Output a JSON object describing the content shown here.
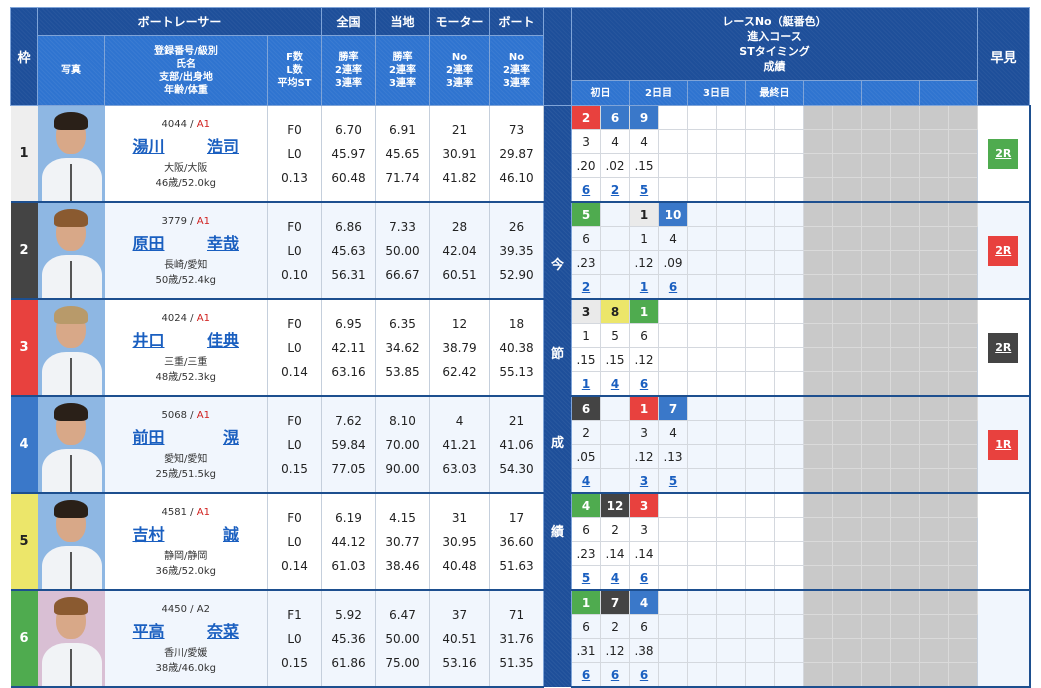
{
  "header": {
    "waku": "枠",
    "racer_group": "ボートレーサー",
    "photo": "写真",
    "profile_lines": [
      "登録番号/級別",
      "氏名",
      "支部/出身地",
      "年齢/体重"
    ],
    "fl_lines": [
      "F数",
      "L数",
      "平均ST"
    ],
    "national": {
      "title": "全国",
      "lines": [
        "勝率",
        "2連率",
        "3連率"
      ]
    },
    "local": {
      "title": "当地",
      "lines": [
        "勝率",
        "2連率",
        "3連率"
      ]
    },
    "motor": {
      "title": "モーター",
      "lines": [
        "No",
        "2連率",
        "3連率"
      ]
    },
    "boat": {
      "title": "ボート",
      "lines": [
        "No",
        "2連率",
        "3連率"
      ]
    },
    "series_vertical": [
      "今",
      "節",
      "成",
      "績"
    ],
    "race_block_lines": [
      "レースNo（艇番色）",
      "進入コース",
      "STタイミング",
      "成績"
    ],
    "days": [
      "初日",
      "2日目",
      "3日目",
      "最終日",
      "",
      "",
      ""
    ],
    "hayami": "早見"
  },
  "colors": {
    "header_dark": "#1e4f9a",
    "header_light": "#2f74d0",
    "link": "#1a5fc0",
    "class_a1": "#d0201e",
    "frame_1": "#eeeeee",
    "frame_2": "#444444",
    "frame_3": "#e8413e",
    "frame_4": "#3a78c9",
    "frame_5": "#ece66a",
    "frame_6": "#4fab4f"
  },
  "racers": [
    {
      "waku": "1",
      "reg": "4044",
      "cls": "A1",
      "last": "湯川",
      "first": "浩司",
      "loc": "大阪/大阪",
      "age_weight": "46歳/52.0kg",
      "f": "F0",
      "l": "L0",
      "st": "0.13",
      "nat": [
        "6.70",
        "45.97",
        "60.48"
      ],
      "loc_rate": [
        "6.91",
        "45.65",
        "71.74"
      ],
      "motor": [
        "21",
        "30.91",
        "41.82"
      ],
      "boat": [
        "73",
        "29.87",
        "46.10"
      ],
      "races": [
        {
          "race": "2",
          "color": "red",
          "course": "3",
          "st": ".20",
          "result": "6"
        },
        {
          "race": "6",
          "color": "blue",
          "course": "4",
          "st": ".02",
          "result": "2"
        },
        {
          "race": "9",
          "color": "blue",
          "course": "4",
          "st": ".15",
          "result": "5"
        },
        null
      ],
      "hayami": {
        "label": "2R",
        "color": "green"
      }
    },
    {
      "waku": "2",
      "reg": "3779",
      "cls": "A1",
      "last": "原田",
      "first": "幸哉",
      "loc": "長崎/愛知",
      "age_weight": "50歳/52.4kg",
      "f": "F0",
      "l": "L0",
      "st": "0.10",
      "nat": [
        "6.86",
        "45.63",
        "56.31"
      ],
      "loc_rate": [
        "7.33",
        "50.00",
        "66.67"
      ],
      "motor": [
        "28",
        "42.04",
        "60.51"
      ],
      "boat": [
        "26",
        "39.35",
        "52.90"
      ],
      "races": [
        {
          "race": "5",
          "color": "green",
          "course": "6",
          "st": ".23",
          "result": "2"
        },
        null,
        {
          "race": "1",
          "color": "white",
          "course": "1",
          "st": ".12",
          "result": "1"
        },
        {
          "race": "10",
          "color": "blue",
          "course": "4",
          "st": ".09",
          "result": "6"
        }
      ],
      "hayami": {
        "label": "2R",
        "color": "red"
      }
    },
    {
      "waku": "3",
      "reg": "4024",
      "cls": "A1",
      "last": "井口",
      "first": "佳典",
      "loc": "三重/三重",
      "age_weight": "48歳/52.3kg",
      "f": "F0",
      "l": "L0",
      "st": "0.14",
      "nat": [
        "6.95",
        "42.11",
        "63.16"
      ],
      "loc_rate": [
        "6.35",
        "34.62",
        "53.85"
      ],
      "motor": [
        "12",
        "38.79",
        "62.42"
      ],
      "boat": [
        "18",
        "40.38",
        "55.13"
      ],
      "races": [
        {
          "race": "3",
          "color": "white",
          "course": "1",
          "st": ".15",
          "result": "1"
        },
        {
          "race": "8",
          "color": "yellow",
          "course": "5",
          "st": ".15",
          "result": "4"
        },
        {
          "race": "1",
          "color": "green",
          "course": "6",
          "st": ".12",
          "result": "6"
        },
        null
      ],
      "hayami": {
        "label": "2R",
        "color": "black"
      }
    },
    {
      "waku": "4",
      "reg": "5068",
      "cls": "A1",
      "last": "前田",
      "first": "滉",
      "loc": "愛知/愛知",
      "age_weight": "25歳/51.5kg",
      "f": "F0",
      "l": "L0",
      "st": "0.15",
      "nat": [
        "7.62",
        "59.84",
        "77.05"
      ],
      "loc_rate": [
        "8.10",
        "70.00",
        "90.00"
      ],
      "motor": [
        "4",
        "41.21",
        "63.03"
      ],
      "boat": [
        "21",
        "41.06",
        "54.30"
      ],
      "races": [
        {
          "race": "6",
          "color": "black",
          "course": "2",
          "st": ".05",
          "result": "4"
        },
        null,
        {
          "race": "1",
          "color": "red",
          "course": "3",
          "st": ".12",
          "result": "3"
        },
        {
          "race": "7",
          "color": "blue",
          "course": "4",
          "st": ".13",
          "result": "5"
        }
      ],
      "hayami": {
        "label": "1R",
        "color": "red"
      }
    },
    {
      "waku": "5",
      "reg": "4581",
      "cls": "A1",
      "last": "吉村",
      "first": "誠",
      "loc": "静岡/静岡",
      "age_weight": "36歳/52.0kg",
      "f": "F0",
      "l": "L0",
      "st": "0.14",
      "nat": [
        "6.19",
        "44.12",
        "61.03"
      ],
      "loc_rate": [
        "4.15",
        "30.77",
        "38.46"
      ],
      "motor": [
        "31",
        "30.95",
        "40.48"
      ],
      "boat": [
        "17",
        "36.60",
        "51.63"
      ],
      "races": [
        {
          "race": "4",
          "color": "green",
          "course": "6",
          "st": ".23",
          "result": "5"
        },
        {
          "race": "12",
          "color": "black",
          "course": "2",
          "st": ".14",
          "result": "4"
        },
        {
          "race": "3",
          "color": "red",
          "course": "3",
          "st": ".14",
          "result": "6"
        },
        null
      ],
      "hayami": null
    },
    {
      "waku": "6",
      "reg": "4450",
      "cls": "A2",
      "last": "平高",
      "first": "奈菜",
      "loc": "香川/愛媛",
      "age_weight": "38歳/46.0kg",
      "f": "F1",
      "l": "L0",
      "st": "0.15",
      "nat": [
        "5.92",
        "45.36",
        "61.86"
      ],
      "loc_rate": [
        "6.47",
        "50.00",
        "75.00"
      ],
      "motor": [
        "37",
        "40.51",
        "53.16"
      ],
      "boat": [
        "71",
        "31.76",
        "51.35"
      ],
      "races": [
        {
          "race": "1",
          "color": "green",
          "course": "6",
          "st": ".31",
          "result": "6"
        },
        {
          "race": "7",
          "color": "black",
          "course": "2",
          "st": ".12",
          "result": "6"
        },
        {
          "race": "4",
          "color": "blue",
          "course": "6",
          "st": ".38",
          "result": "6"
        },
        null
      ],
      "hayami": null
    }
  ]
}
